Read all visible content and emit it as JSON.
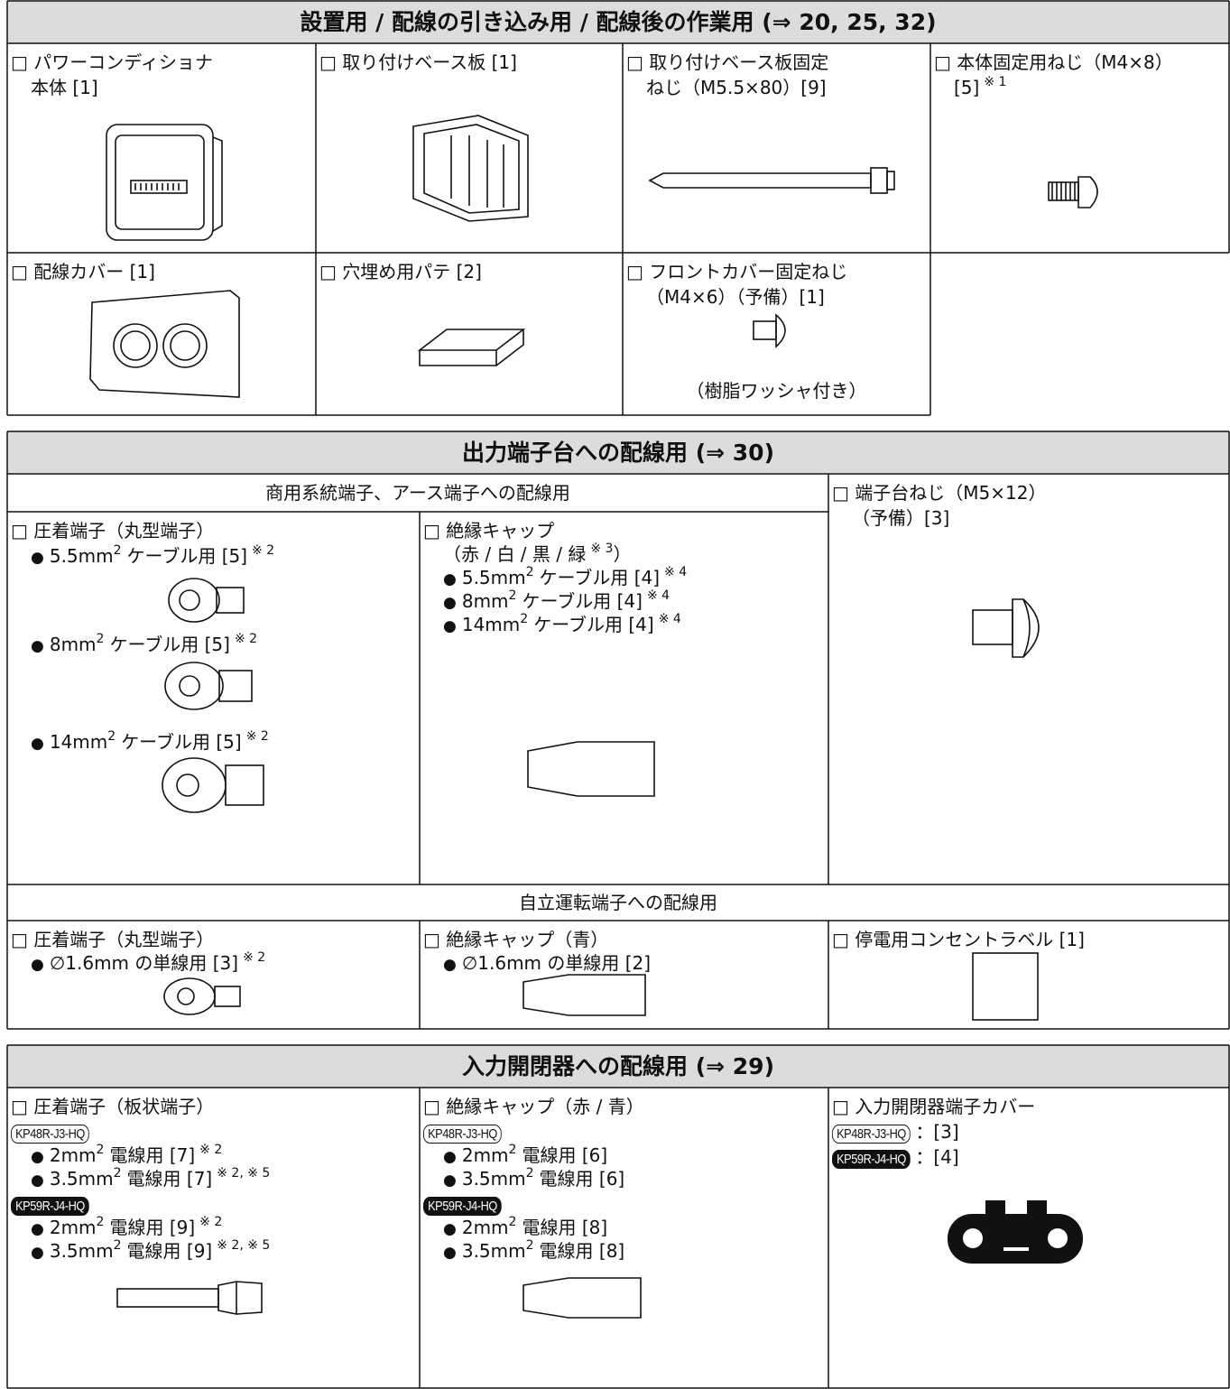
{
  "section1": {
    "title": "設置用 / 配線の引き込み用 / 配線後の作業用 (⇒ 20, 25, 32)",
    "cells": [
      {
        "lines": [
          {
            "text": "□ パワーコンディショナ"
          },
          {
            "text": "本体 [1]"
          }
        ]
      },
      {
        "lines": [
          {
            "text": "□ 取り付けベース板 [1]"
          }
        ]
      },
      {
        "lines": [
          {
            "text": "□ 取り付けベース板固定"
          },
          {
            "text": "ねじ（M5.5×80）[9]"
          }
        ]
      },
      {
        "lines": [
          {
            "text": "□ 本体固定用ねじ（M4×8）"
          },
          {
            "text": "[5]",
            "note": "※ 1"
          }
        ]
      },
      {
        "lines": [
          {
            "text": "□ 配線カバー [1]"
          }
        ]
      },
      {
        "lines": [
          {
            "text": "□ 穴埋め用パテ [2]"
          }
        ]
      },
      {
        "lines": [
          {
            "text": "□ フロントカバー固定ねじ"
          },
          {
            "text": "（M4×6）（予備）[1]"
          },
          {
            "text": "（樹脂ワッシャ付き）"
          }
        ]
      }
    ]
  },
  "section2": {
    "title": "出力端子台への配線用 (⇒ 30)",
    "groups": [
      "商用系統端子、アース端子への配線用",
      "自立運転端子への配線用"
    ],
    "cells": [
      {
        "lines": [
          {
            "text": "□ 圧着端子（丸型端子）"
          },
          {
            "bullet": "●",
            "text": "5.5mm",
            "exp": "2",
            "rest": "ケーブル用 [5]",
            "note": "※ 2"
          },
          {
            "bullet": "●",
            "text": "8mm",
            "exp": "2",
            "rest": "ケーブル用 [5]",
            "note": "※ 2"
          },
          {
            "bullet": "●",
            "text": "14mm",
            "exp": "2",
            "rest": "ケーブル用 [5]",
            "note": "※ 2"
          }
        ]
      },
      {
        "lines": [
          {
            "text": "□ 絶縁キャップ"
          },
          {
            "text": "（赤 / 白 / 黒 / 緑",
            "note": "※ 3",
            "tail": "）"
          },
          {
            "bullet": "●",
            "text": "5.5mm",
            "exp": "2",
            "rest": "ケーブル用 [4]",
            "note": "※ 4"
          },
          {
            "bullet": "●",
            "text": "8mm",
            "exp": "2",
            "rest": "ケーブル用 [4]",
            "note": "※ 4"
          },
          {
            "bullet": "●",
            "text": "14mm",
            "exp": "2",
            "rest": "ケーブル用 [4]",
            "note": "※ 4"
          }
        ]
      },
      {
        "lines": [
          {
            "text": "□ 端子台ねじ（M5×12）"
          },
          {
            "text": "（予備）[3]"
          }
        ]
      },
      {
        "lines": [
          {
            "text": "□ 圧着端子（丸型端子）"
          },
          {
            "bullet": "●",
            "text": "∅1.6mm の単線用 [3]",
            "note": "※ 2"
          }
        ]
      },
      {
        "lines": [
          {
            "text": "□ 絶縁キャップ（青）"
          },
          {
            "bullet": "●",
            "text": "∅1.6mm の単線用 [2]"
          }
        ]
      },
      {
        "lines": [
          {
            "text": "□ 停電用コンセントラベル [1]"
          }
        ]
      }
    ]
  },
  "section3": {
    "title": "入力開閉器への配線用 (⇒ 29)",
    "cells": [
      {
        "lines": [
          {
            "text": "□ 圧着端子（板状端子）"
          },
          {
            "badge": "KP48R-J3-HQ",
            "filled": false
          },
          {
            "bullet": "●",
            "text": "2mm",
            "exp": "2",
            "rest": "電線用 [7]",
            "note": "※ 2"
          },
          {
            "bullet": "●",
            "text": "3.5mm",
            "exp": "2",
            "rest": "電線用 [7]",
            "note": "※ 2, ※ 5"
          },
          {
            "badge": "KP59R-J4-HQ",
            "filled": true
          },
          {
            "bullet": "●",
            "text": "2mm",
            "exp": "2",
            "rest": "電線用 [9]",
            "note": "※ 2"
          },
          {
            "bullet": "●",
            "text": "3.5mm",
            "exp": "2",
            "rest": "電線用 [9]",
            "note": "※ 2, ※ 5"
          }
        ]
      },
      {
        "lines": [
          {
            "text": "□ 絶縁キャップ（赤 / 青）"
          },
          {
            "badge": "KP48R-J3-HQ",
            "filled": false
          },
          {
            "bullet": "●",
            "text": "2mm",
            "exp": "2",
            "rest": "電線用 [6]"
          },
          {
            "bullet": "●",
            "text": "3.5mm",
            "exp": "2",
            "rest": "電線用 [6]"
          },
          {
            "badge": "KP59R-J4-HQ",
            "filled": true
          },
          {
            "bullet": "●",
            "text": "2mm",
            "exp": "2",
            "rest": "電線用 [8]"
          },
          {
            "bullet": "●",
            "text": "3.5mm",
            "exp": "2",
            "rest": "電線用 [8]"
          }
        ]
      },
      {
        "lines": [
          {
            "text": "□ 入力開閉器端子カバー"
          },
          {
            "badge": "KP48R-J3-HQ",
            "filled": false,
            "rest": "：[3]"
          },
          {
            "badge": "KP59R-J4-HQ",
            "filled": true,
            "rest": "：[4]"
          }
        ]
      }
    ]
  }
}
